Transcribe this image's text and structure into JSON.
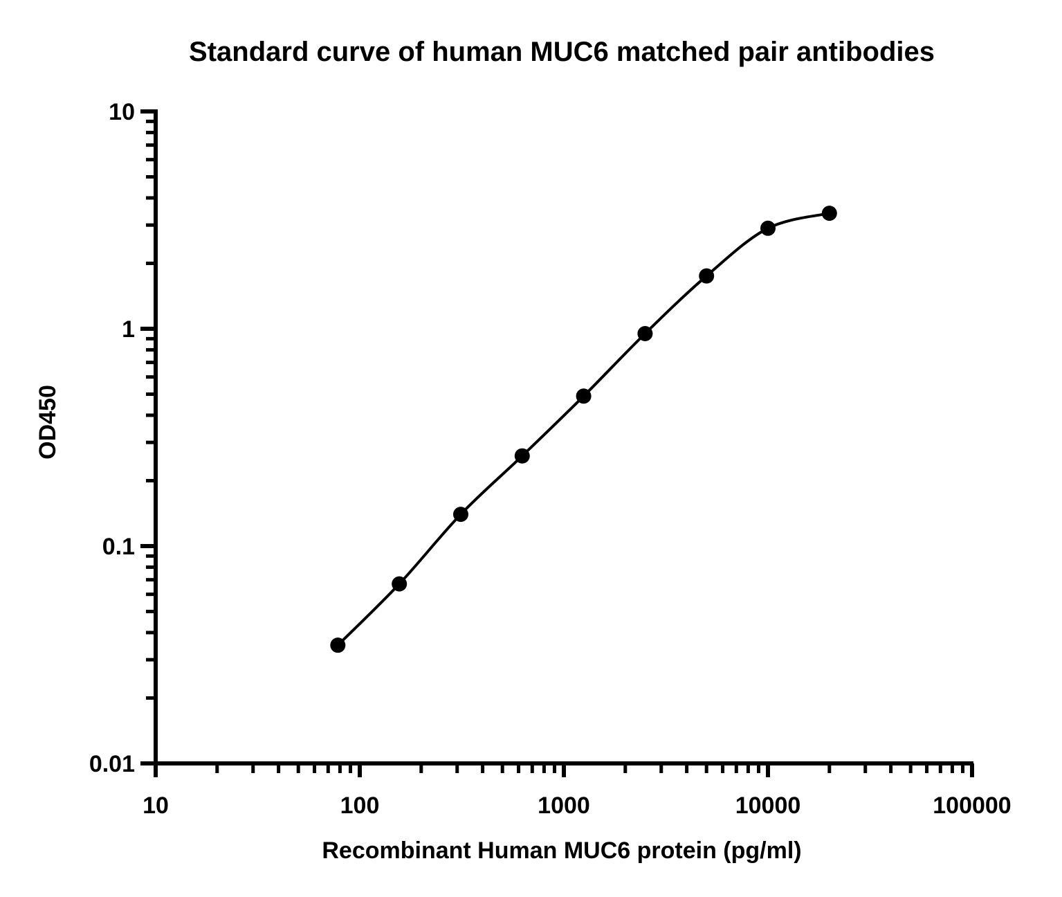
{
  "chart_data": {
    "type": "scatter",
    "title": "Standard curve of human MUC6 matched pair antibodies",
    "xlabel": "Recombinant Human MUC6 protein (pg/ml)",
    "ylabel": "OD450",
    "x_scale": "log",
    "y_scale": "log",
    "xlim": [
      10,
      100000
    ],
    "ylim": [
      0.01,
      10
    ],
    "x_ticks": [
      "10",
      "100",
      "1000",
      "10000",
      "100000"
    ],
    "y_ticks": [
      "0.01",
      "0.1",
      "1",
      "10"
    ],
    "grid": false,
    "legend": "none",
    "series": [
      {
        "points": [
          {
            "x": 78.1,
            "y": 0.035
          },
          {
            "x": 156.25,
            "y": 0.067
          },
          {
            "x": 312.5,
            "y": 0.14
          },
          {
            "x": 625,
            "y": 0.26
          },
          {
            "x": 1250,
            "y": 0.49
          },
          {
            "x": 2500,
            "y": 0.95
          },
          {
            "x": 5000,
            "y": 1.75
          },
          {
            "x": 10000,
            "y": 2.9
          },
          {
            "x": 20000,
            "y": 3.4
          }
        ],
        "fit_curve": "4-parameter logistic",
        "color": "#000000"
      }
    ]
  }
}
